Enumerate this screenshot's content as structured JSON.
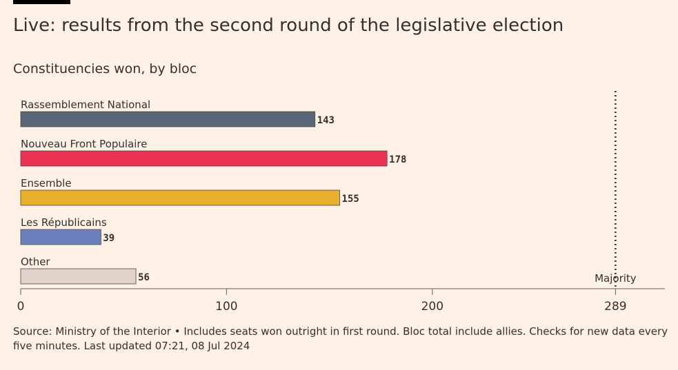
{
  "title": "Live: results from the second round of the legislative election",
  "subtitle": "Constituencies won, by bloc",
  "footer": {
    "note": "Source: Ministry of the Interior • Includes seats won outright in first round. Bloc total include allies. Checks for new data every five minutes. Last updated 07:21, 08 Jul 2024"
  },
  "chart_data": {
    "type": "bar",
    "orientation": "horizontal",
    "categories": [
      "Rassemblement National",
      "Nouveau Front Populaire",
      "Ensemble",
      "Les Républicains",
      "Other"
    ],
    "values": [
      143,
      178,
      155,
      39,
      56
    ],
    "colors": [
      "#5a6677",
      "#eb3253",
      "#e8b02e",
      "#6a80bf",
      "#ded3cb"
    ],
    "xlim": [
      0,
      313
    ],
    "x_ticks": [
      0,
      100,
      200
    ],
    "majority": {
      "value": 289,
      "label": "Majority",
      "tick_label": "289"
    },
    "grid": false
  }
}
